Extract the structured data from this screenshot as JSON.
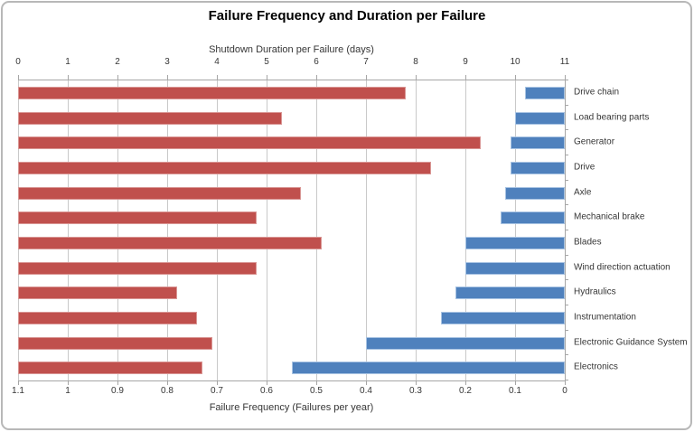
{
  "chart": {
    "title": "Failure Frequency and Duration per Failure"
  },
  "chart_data": {
    "type": "bar",
    "orientation": "horizontal",
    "title": "Failure Frequency and Duration per Failure",
    "categories": [
      "Drive chain",
      "Load bearing parts",
      "Generator",
      "Drive",
      "Axle",
      "Mechanical brake",
      "Blades",
      "Wind direction actuation",
      "Hydraulics",
      "Instrumentation",
      "Electronic Guidance System",
      "Electronics"
    ],
    "series": [
      {
        "name": "Shutdown Duration per Failure (days)",
        "axis": "top",
        "anchor": "left",
        "color": "#C0504D",
        "border_color": "#D99694",
        "values": [
          7.8,
          5.3,
          9.3,
          8.3,
          5.7,
          4.8,
          6.1,
          4.8,
          3.2,
          3.6,
          3.9,
          3.7
        ]
      },
      {
        "name": "Failure Frequency (Failures per year)",
        "axis": "bottom",
        "anchor": "right",
        "color": "#4F81BD",
        "border_color": "#A9C4E3",
        "values": [
          0.08,
          0.1,
          0.11,
          0.11,
          0.12,
          0.13,
          0.2,
          0.2,
          0.22,
          0.25,
          0.4,
          0.55
        ]
      }
    ],
    "top_axis": {
      "title": "Shutdown Duration per Failure (days)",
      "min": 0,
      "max": 11,
      "tick_labels": [
        "0",
        "1",
        "2",
        "3",
        "4",
        "5",
        "6",
        "7",
        "8",
        "9",
        "10",
        "11"
      ]
    },
    "bottom_axis": {
      "title": "Failure Frequency (Failures per year)",
      "min": 0,
      "max": 1.1,
      "reversed": true,
      "tick_labels": [
        "1.1",
        "1",
        "0.9",
        "0.8",
        "0.7",
        "0.6",
        "0.5",
        "0.4",
        "0.3",
        "0.2",
        "0.1",
        "0"
      ]
    },
    "gridlines": true,
    "legend": "none",
    "colors": {
      "gridline": "#c9c9c9",
      "axis_line": "#a6a6a6",
      "text": "#363636",
      "title_text": "#000000",
      "background": "#ffffff",
      "frame_border": "#b8b8b8"
    }
  }
}
